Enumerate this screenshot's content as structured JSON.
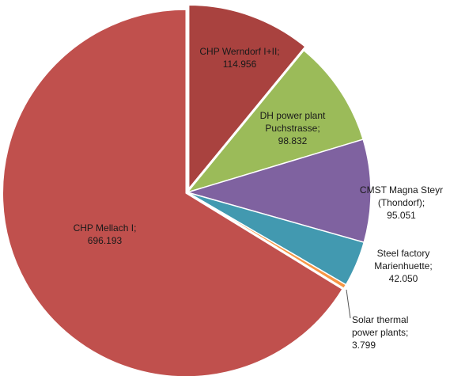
{
  "chart_data": {
    "type": "pie",
    "categories": [
      "CHP Werndorf I+II;",
      "DH power plant Puchstrasse;",
      "CMST Magna Steyr (Thondorf);",
      "Steel factory Marienhuette;",
      "Solar thermal power plants;",
      "CHP Mellach I;"
    ],
    "values": [
      114.956,
      98.832,
      95.051,
      42.05,
      3.799,
      696.193
    ],
    "value_labels": [
      "114.956",
      "98.832",
      "95.051",
      "42.050",
      "3.799",
      "696.193"
    ],
    "colors": [
      "#a9423f",
      "#9bbb59",
      "#7f62a0",
      "#4299b0",
      "#f79646",
      "#c0504d"
    ]
  }
}
